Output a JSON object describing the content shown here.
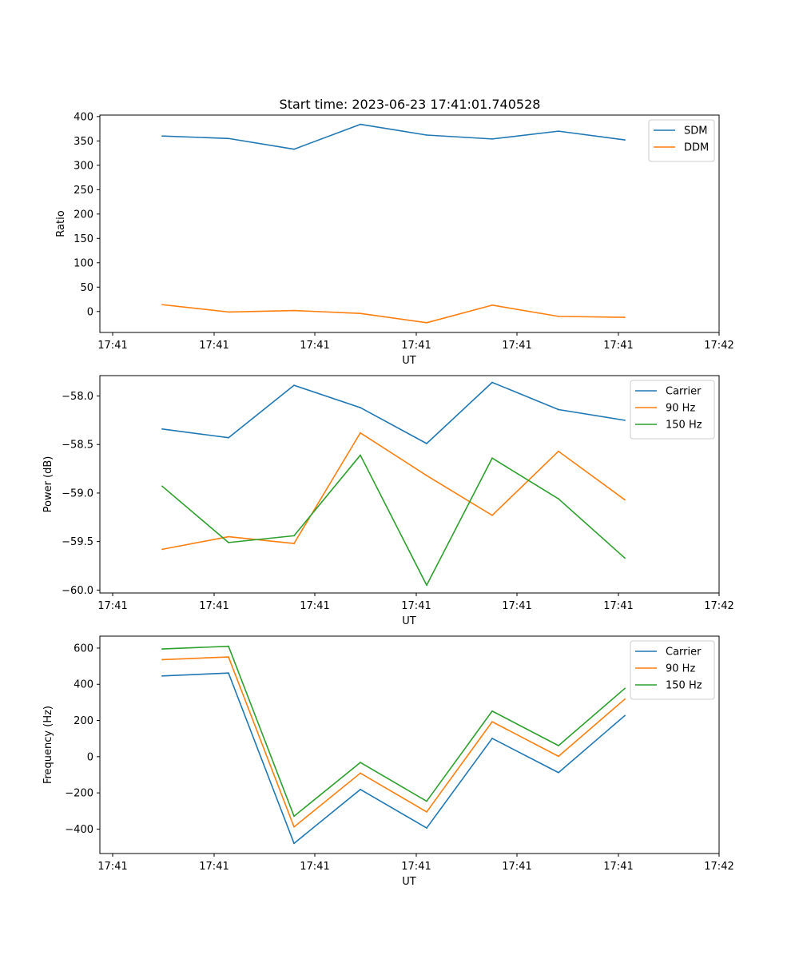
{
  "title": "Start time: 2023-06-23 17:41:01.740528",
  "colors": {
    "blue": "#1f77b4",
    "orange": "#ff7f0e",
    "green": "#2ca02c"
  },
  "chart_data": [
    {
      "type": "line",
      "xlabel": "UT",
      "ylabel": "Ratio",
      "x_tick_labels": [
        "17:41",
        "17:41",
        "17:41",
        "17:41",
        "17:41",
        "17:41",
        "17:42"
      ],
      "y_ticks": [
        0,
        50,
        100,
        150,
        200,
        250,
        300,
        350,
        400
      ],
      "ylim": [
        -43,
        403
      ],
      "legend_position": "upper right",
      "series": [
        {
          "name": "SDM",
          "color": "#1f77b4",
          "values": [
            360,
            355,
            333,
            384,
            362,
            354,
            370,
            352
          ]
        },
        {
          "name": "DDM",
          "color": "#ff7f0e",
          "values": [
            14,
            -1,
            2,
            -4,
            -23,
            13,
            -10,
            -12
          ]
        }
      ]
    },
    {
      "type": "line",
      "xlabel": "UT",
      "ylabel": "Power (dB)",
      "x_tick_labels": [
        "17:41",
        "17:41",
        "17:41",
        "17:41",
        "17:41",
        "17:41",
        "17:42"
      ],
      "y_ticks": [
        -60.0,
        -59.5,
        -59.0,
        -58.5,
        -58.0
      ],
      "y_tick_labels": [
        "−60.0",
        "−59.5",
        "−59.0",
        "−58.5",
        "−58.0"
      ],
      "ylim": [
        -60.03,
        -57.79
      ],
      "legend_position": "upper right",
      "series": [
        {
          "name": "Carrier",
          "color": "#1f77b4",
          "values": [
            -58.34,
            -58.43,
            -57.89,
            -58.12,
            -58.49,
            -57.86,
            -58.14,
            -58.25
          ]
        },
        {
          "name": "90 Hz",
          "color": "#ff7f0e",
          "values": [
            -59.58,
            -59.45,
            -59.52,
            -58.38,
            -58.82,
            -59.23,
            -58.57,
            -59.07
          ]
        },
        {
          "name": "150 Hz",
          "color": "#2ca02c",
          "values": [
            -58.93,
            -59.51,
            -59.44,
            -58.61,
            -59.95,
            -58.64,
            -59.06,
            -59.67
          ]
        }
      ]
    },
    {
      "type": "line",
      "xlabel": "UT",
      "ylabel": "Frequency (Hz)",
      "x_tick_labels": [
        "17:41",
        "17:41",
        "17:41",
        "17:41",
        "17:41",
        "17:41",
        "17:42"
      ],
      "y_ticks": [
        -400,
        -200,
        0,
        200,
        400,
        600
      ],
      "y_tick_labels": [
        "−400",
        "−200",
        "0",
        "200",
        "400",
        "600"
      ],
      "ylim": [
        -535,
        666
      ],
      "legend_position": "upper right",
      "series": [
        {
          "name": "Carrier",
          "color": "#1f77b4",
          "values": [
            446,
            462,
            -479,
            -181,
            -394,
            101,
            -88,
            227
          ]
        },
        {
          "name": "90 Hz",
          "color": "#ff7f0e",
          "values": [
            536,
            551,
            -388,
            -91,
            -305,
            193,
            2,
            318
          ]
        },
        {
          "name": "150 Hz",
          "color": "#2ca02c",
          "values": [
            595,
            610,
            -329,
            -32,
            -246,
            252,
            61,
            377
          ]
        }
      ]
    }
  ]
}
